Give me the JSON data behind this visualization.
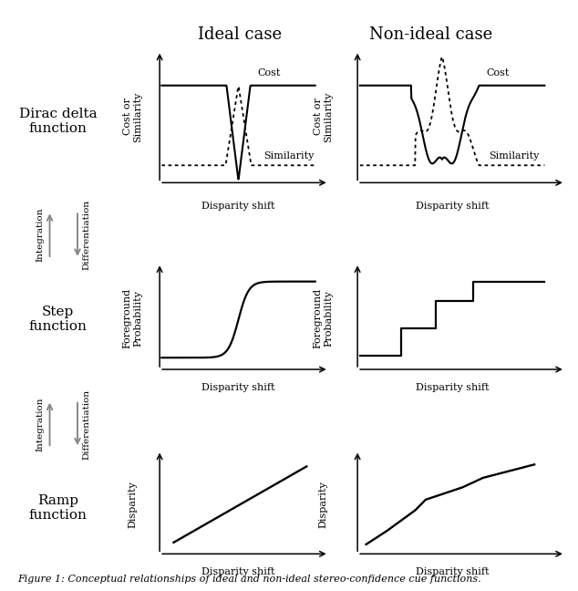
{
  "title_ideal": "Ideal case",
  "title_nonideal": "Non-ideal case",
  "row_labels": [
    "Dirac delta\nfunction",
    "Step\nfunction",
    "Ramp\nfunction"
  ],
  "bg_color": "#ffffff",
  "plot_color": "#000000",
  "gray_color": "#888888",
  "fontsize_title": 13,
  "fontsize_ylabel": 8,
  "fontsize_xlabel": 8,
  "fontsize_row": 11,
  "fontsize_annot": 8,
  "fontsize_intdiff": 7.5,
  "fontsize_caption": 8
}
